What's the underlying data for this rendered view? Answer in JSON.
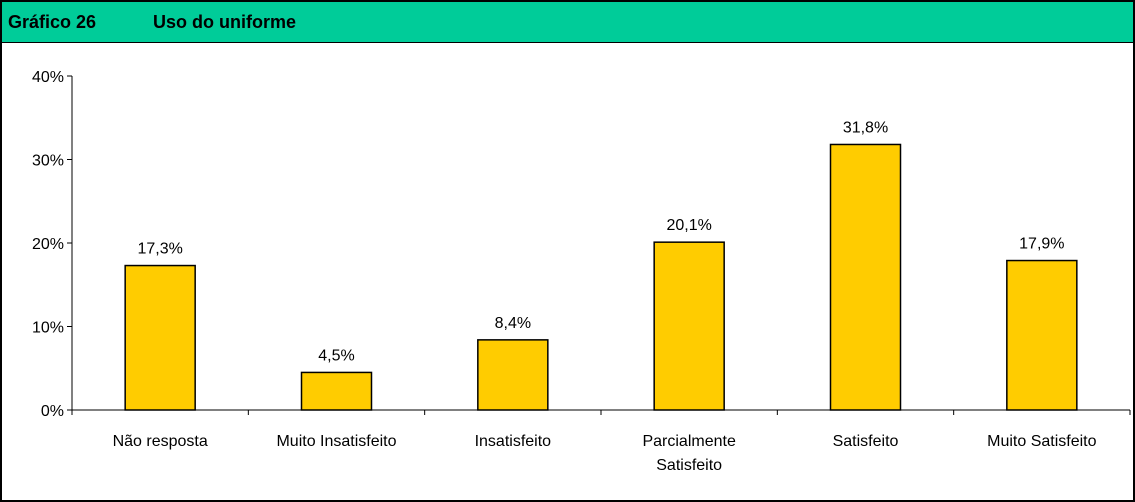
{
  "header": {
    "number": "Gráfico 26",
    "title": "Uso do uniforme"
  },
  "colors": {
    "header_bg": "#00cc99",
    "bar_fill": "#ffcc00",
    "bar_stroke": "#000000"
  },
  "chart_data": {
    "type": "bar",
    "title": "Uso do uniforme",
    "xlabel": "",
    "ylabel": "",
    "ylim": [
      0,
      40
    ],
    "y_ticks": [
      "0%",
      "10%",
      "20%",
      "30%",
      "40%"
    ],
    "grid": false,
    "legend": "none",
    "categories": [
      [
        "Não resposta"
      ],
      [
        "Muito Insatisfeito"
      ],
      [
        "Insatisfeito"
      ],
      [
        "Parcialmente",
        "Satisfeito"
      ],
      [
        "Satisfeito"
      ],
      [
        "Muito Satisfeito"
      ]
    ],
    "values": [
      17.3,
      4.5,
      8.4,
      20.1,
      31.8,
      17.9
    ],
    "value_labels": [
      "17,3%",
      "4,5%",
      "8,4%",
      "20,1%",
      "31,8%",
      "17,9%"
    ]
  }
}
